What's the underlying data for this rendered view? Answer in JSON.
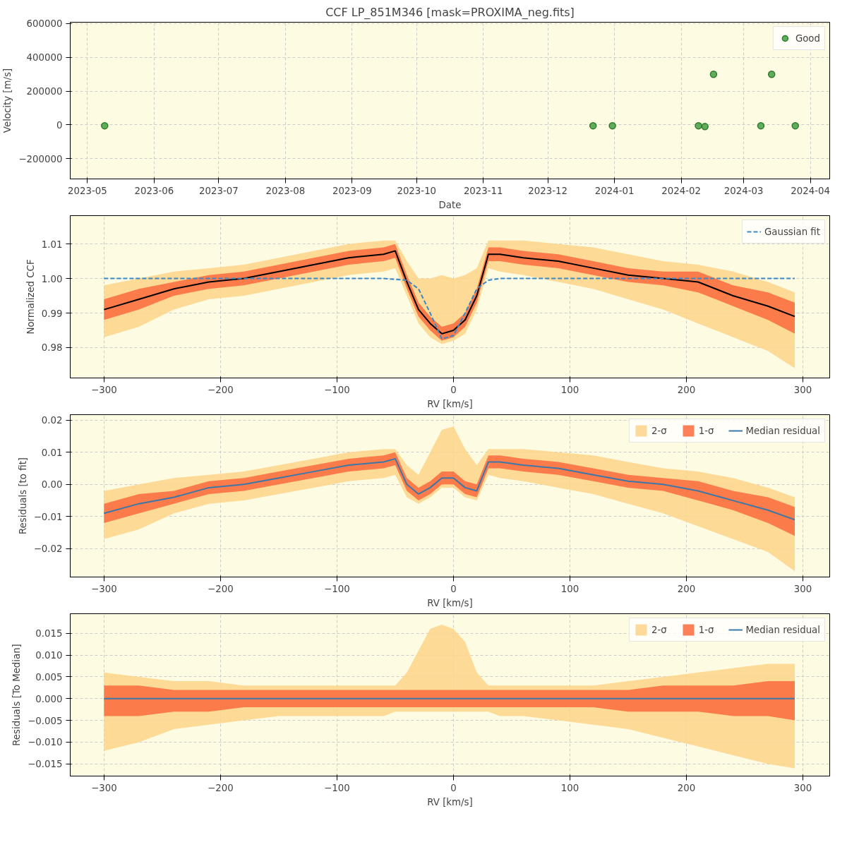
{
  "chart_data": [
    {
      "type": "scatter",
      "title": "CCF LP_851M346 [mask=PROXIMA_neg.fits]",
      "xlabel": "Date",
      "ylabel": "Velocity [m/s]",
      "legend": "top right",
      "grid": true,
      "marker": "circle",
      "xlim": [
        "2023-04-23",
        "2024-04-10"
      ],
      "ylim": [
        -320000,
        608000
      ],
      "xticks": [
        {
          "value": "2023-05-01",
          "label": "2023-05"
        },
        {
          "value": "2023-06-01",
          "label": "2023-06"
        },
        {
          "value": "2023-07-01",
          "label": "2023-07"
        },
        {
          "value": "2023-08-01",
          "label": "2023-08"
        },
        {
          "value": "2023-09-01",
          "label": "2023-09"
        },
        {
          "value": "2023-10-01",
          "label": "2023-10"
        },
        {
          "value": "2023-11-01",
          "label": "2023-11"
        },
        {
          "value": "2023-12-01",
          "label": "2023-12"
        },
        {
          "value": "2024-01-01",
          "label": "2024-01"
        },
        {
          "value": "2024-02-01",
          "label": "2024-02"
        },
        {
          "value": "2024-03-01",
          "label": "2024-03"
        },
        {
          "value": "2024-04-01",
          "label": "2024-04"
        }
      ],
      "yticks": [
        {
          "value": -200000,
          "label": "−200000"
        },
        0,
        200000,
        400000,
        600000
      ],
      "series": [
        {
          "name": "Good",
          "color": "#3a9a3a",
          "x": [
            "2023-05-09",
            "2023-12-22",
            "2023-12-31",
            "2024-02-09",
            "2024-02-12",
            "2024-02-16",
            "2024-03-09",
            "2024-03-14",
            "2024-03-25"
          ],
          "values": [
            -5000,
            -5000,
            -5000,
            -5000,
            -10000,
            300000,
            -5000,
            300000,
            -5000
          ]
        }
      ]
    },
    {
      "type": "line",
      "xlabel": "RV [km/s]",
      "ylabel": "Normalized CCF",
      "legend": "top right",
      "grid": true,
      "xlim": [
        -329,
        323
      ],
      "ylim": [
        0.9712,
        1.0182
      ],
      "xticks": [
        {
          "value": -300,
          "label": "−300"
        },
        {
          "value": -200,
          "label": "−200"
        },
        {
          "value": -100,
          "label": "−100"
        },
        0,
        100,
        200,
        300
      ],
      "yticks": [
        0.98,
        0.99,
        {
          "value": 1.0,
          "label": "1.00"
        },
        1.01
      ],
      "x": [
        -300,
        -270,
        -240,
        -210,
        -180,
        -150,
        -120,
        -90,
        -60,
        -50,
        -40,
        -30,
        -20,
        -10,
        0,
        10,
        20,
        30,
        40,
        60,
        90,
        120,
        150,
        180,
        210,
        240,
        270,
        293
      ],
      "series": [
        {
          "type": "line",
          "color": "#fed48a",
          "values": [
            null,
            null,
            null,
            null,
            null,
            null,
            null,
            null,
            null,
            null,
            null,
            null,
            null,
            null,
            null,
            null,
            null,
            null,
            null,
            null,
            null,
            null,
            null,
            null,
            null,
            null,
            null,
            null
          ],
          "lower": [
            0.983,
            0.986,
            0.991,
            0.994,
            0.995,
            0.997,
            0.999,
            1.001,
            1.002,
            1.003,
            0.995,
            0.987,
            0.983,
            0.981,
            0.982,
            0.984,
            0.991,
            1.003,
            1.002,
            1.001,
            0.999,
            0.997,
            0.994,
            0.991,
            0.987,
            0.983,
            0.979,
            0.974
          ],
          "upper": [
            0.998,
            1.0,
            1.002,
            1.003,
            1.004,
            1.006,
            1.008,
            1.01,
            1.011,
            1.011,
            1.005,
            1.0,
            1.0,
            1.001,
            1.0,
            1.001,
            1.003,
            1.011,
            1.011,
            1.011,
            1.01,
            1.009,
            1.007,
            1.005,
            1.004,
            1.002,
            0.999,
            0.996
          ]
        },
        {
          "type": "line",
          "color": "#fb6a3c",
          "values": [
            null,
            null,
            null,
            null,
            null,
            null,
            null,
            null,
            null,
            null,
            null,
            null,
            null,
            null,
            null,
            null,
            null,
            null,
            null,
            null,
            null,
            null,
            null,
            null,
            null,
            null,
            null,
            null
          ],
          "lower": [
            0.988,
            0.991,
            0.995,
            0.997,
            0.998,
            1.0,
            1.002,
            1.004,
            1.005,
            1.006,
            0.997,
            0.989,
            0.985,
            0.982,
            0.983,
            0.986,
            0.993,
            1.005,
            1.005,
            1.004,
            1.003,
            1.001,
            0.999,
            0.998,
            0.996,
            0.992,
            0.988,
            0.984
          ],
          "upper": [
            0.994,
            0.997,
            0.999,
            1.001,
            1.002,
            1.004,
            1.006,
            1.008,
            1.009,
            1.01,
            1.001,
            0.993,
            0.989,
            0.986,
            0.987,
            0.99,
            0.997,
            1.009,
            1.009,
            1.008,
            1.007,
            1.005,
            1.003,
            1.002,
            1.002,
            0.998,
            0.996,
            0.993
          ]
        },
        {
          "type": "line",
          "color": "#000000",
          "values": [
            0.991,
            0.994,
            0.997,
            0.999,
            1.0,
            1.002,
            1.004,
            1.006,
            1.007,
            1.008,
            0.999,
            0.991,
            0.987,
            0.984,
            0.985,
            0.988,
            0.995,
            1.007,
            1.007,
            1.006,
            1.005,
            1.003,
            1.001,
            1.0,
            0.999,
            0.995,
            0.992,
            0.989
          ]
        },
        {
          "type": "line",
          "name": "Gaussian fit",
          "color": "#3a88c5",
          "line_style": "dashed",
          "x": [
            -300,
            -60,
            -40,
            -30,
            -20,
            -10,
            0,
            10,
            20,
            30,
            40,
            293
          ],
          "values": [
            1.0,
            1.0,
            0.9995,
            0.997,
            0.99,
            0.9825,
            0.9835,
            0.99,
            0.997,
            0.9995,
            1.0,
            1.0
          ]
        }
      ]
    },
    {
      "type": "line",
      "xlabel": "RV [km/s]",
      "ylabel": "Residuals [to fit]",
      "legend": "top right",
      "grid": true,
      "xlim": [
        -329,
        323
      ],
      "ylim": [
        -0.0288,
        0.0217
      ],
      "xticks": [
        {
          "value": -300,
          "label": "−300"
        },
        {
          "value": -200,
          "label": "−200"
        },
        {
          "value": -100,
          "label": "−100"
        },
        0,
        100,
        200,
        300
      ],
      "yticks": [
        {
          "value": -0.02,
          "label": "−0.02"
        },
        {
          "value": -0.01,
          "label": "−0.01"
        },
        {
          "value": 0,
          "label": "0.00"
        },
        0.01,
        0.02
      ],
      "x": [
        -300,
        -270,
        -240,
        -210,
        -180,
        -150,
        -120,
        -90,
        -60,
        -50,
        -40,
        -30,
        -20,
        -10,
        0,
        10,
        20,
        30,
        40,
        60,
        90,
        120,
        150,
        180,
        210,
        240,
        270,
        293
      ],
      "series": [
        {
          "type": "line",
          "name": "2-σ",
          "color": "#fed48a",
          "values": [
            null,
            null,
            null,
            null,
            null,
            null,
            null,
            null,
            null,
            null,
            null,
            null,
            null,
            null,
            null,
            null,
            null,
            null,
            null,
            null,
            null,
            null,
            null,
            null,
            null,
            null,
            null,
            null
          ],
          "lower": [
            -0.017,
            -0.014,
            -0.009,
            -0.006,
            -0.005,
            -0.003,
            -0.001,
            0.001,
            0.002,
            0.003,
            -0.004,
            -0.006,
            -0.004,
            -0.001,
            -0.001,
            -0.004,
            -0.005,
            0.003,
            0.002,
            0.001,
            -0.001,
            -0.003,
            -0.006,
            -0.009,
            -0.013,
            -0.017,
            -0.021,
            -0.027
          ],
          "upper": [
            -0.002,
            0.0,
            0.002,
            0.003,
            0.004,
            0.006,
            0.008,
            0.01,
            0.011,
            0.011,
            0.006,
            0.003,
            0.01,
            0.017,
            0.018,
            0.011,
            0.006,
            0.011,
            0.011,
            0.011,
            0.01,
            0.009,
            0.007,
            0.005,
            0.004,
            0.002,
            -0.001,
            -0.004
          ]
        },
        {
          "type": "line",
          "name": "1-σ",
          "color": "#fb6a3c",
          "values": [
            null,
            null,
            null,
            null,
            null,
            null,
            null,
            null,
            null,
            null,
            null,
            null,
            null,
            null,
            null,
            null,
            null,
            null,
            null,
            null,
            null,
            null,
            null,
            null,
            null,
            null,
            null,
            null
          ],
          "lower": [
            -0.012,
            -0.009,
            -0.006,
            -0.003,
            -0.002,
            0.0,
            0.002,
            0.004,
            0.005,
            0.006,
            -0.002,
            -0.005,
            -0.003,
            0.0,
            0.0,
            -0.003,
            -0.004,
            0.005,
            0.005,
            0.004,
            0.003,
            0.001,
            -0.001,
            -0.002,
            -0.005,
            -0.008,
            -0.012,
            -0.016
          ],
          "upper": [
            -0.006,
            -0.003,
            -0.002,
            0.001,
            0.002,
            0.004,
            0.006,
            0.008,
            0.009,
            0.01,
            0.002,
            -0.001,
            0.001,
            0.004,
            0.004,
            0.001,
            0.0,
            0.009,
            0.009,
            0.008,
            0.007,
            0.005,
            0.003,
            0.002,
            0.001,
            -0.002,
            -0.004,
            -0.007
          ]
        },
        {
          "type": "line",
          "name": "Median residual",
          "color": "#3b78a9",
          "values": [
            -0.009,
            -0.006,
            -0.004,
            -0.001,
            0.0,
            0.002,
            0.004,
            0.006,
            0.007,
            0.008,
            0.0,
            -0.003,
            -0.001,
            0.002,
            0.002,
            -0.001,
            -0.002,
            0.007,
            0.007,
            0.006,
            0.005,
            0.003,
            0.001,
            0.0,
            -0.002,
            -0.005,
            -0.008,
            -0.011
          ]
        }
      ]
    },
    {
      "type": "line",
      "xlabel": "RV [km/s]",
      "ylabel": "Residuals [To Median]",
      "legend": "top right",
      "grid": true,
      "xlim": [
        -329,
        323
      ],
      "ylim": [
        -0.0178,
        0.0195
      ],
      "xticks": [
        {
          "value": -300,
          "label": "−300"
        },
        {
          "value": -200,
          "label": "−200"
        },
        {
          "value": -100,
          "label": "−100"
        },
        0,
        100,
        200,
        300
      ],
      "yticks": [
        {
          "value": -0.015,
          "label": "−0.015"
        },
        {
          "value": -0.01,
          "label": "−0.010"
        },
        {
          "value": -0.005,
          "label": "−0.005"
        },
        {
          "value": 0,
          "label": "0.000"
        },
        {
          "value": 0.005,
          "label": "0.005"
        },
        {
          "value": 0.01,
          "label": "0.010"
        },
        {
          "value": 0.015,
          "label": "0.015"
        }
      ],
      "x": [
        -300,
        -270,
        -240,
        -210,
        -180,
        -150,
        -120,
        -90,
        -60,
        -50,
        -40,
        -30,
        -20,
        -10,
        0,
        10,
        20,
        30,
        40,
        60,
        90,
        120,
        150,
        180,
        210,
        240,
        270,
        293
      ],
      "series": [
        {
          "type": "line",
          "name": "2-σ",
          "color": "#fed48a",
          "values": [
            null,
            null,
            null,
            null,
            null,
            null,
            null,
            null,
            null,
            null,
            null,
            null,
            null,
            null,
            null,
            null,
            null,
            null,
            null,
            null,
            null,
            null,
            null,
            null,
            null,
            null,
            null,
            null
          ],
          "lower": [
            -0.012,
            -0.01,
            -0.007,
            -0.006,
            -0.005,
            -0.004,
            -0.004,
            -0.004,
            -0.004,
            -0.003,
            -0.003,
            -0.003,
            -0.003,
            -0.003,
            -0.003,
            -0.003,
            -0.003,
            -0.003,
            -0.004,
            -0.004,
            -0.005,
            -0.006,
            -0.007,
            -0.009,
            -0.011,
            -0.013,
            -0.015,
            -0.016
          ],
          "upper": [
            0.006,
            0.005,
            0.004,
            0.004,
            0.003,
            0.003,
            0.003,
            0.003,
            0.003,
            0.003,
            0.006,
            0.011,
            0.016,
            0.017,
            0.016,
            0.013,
            0.006,
            0.003,
            0.003,
            0.003,
            0.003,
            0.003,
            0.004,
            0.005,
            0.006,
            0.007,
            0.008,
            0.008
          ]
        },
        {
          "type": "line",
          "name": "1-σ",
          "color": "#fb6a3c",
          "values": [
            null,
            null,
            null,
            null,
            null,
            null,
            null,
            null,
            null,
            null,
            null,
            null,
            null,
            null,
            null,
            null,
            null,
            null,
            null,
            null,
            null,
            null,
            null,
            null,
            null,
            null,
            null,
            null
          ],
          "lower": [
            -0.004,
            -0.004,
            -0.003,
            -0.003,
            -0.002,
            -0.002,
            -0.002,
            -0.002,
            -0.002,
            -0.002,
            -0.002,
            -0.002,
            -0.002,
            -0.002,
            -0.002,
            -0.002,
            -0.002,
            -0.002,
            -0.002,
            -0.002,
            -0.002,
            -0.002,
            -0.003,
            -0.003,
            -0.003,
            -0.004,
            -0.004,
            -0.005
          ],
          "upper": [
            0.003,
            0.003,
            0.002,
            0.002,
            0.002,
            0.002,
            0.002,
            0.002,
            0.002,
            0.002,
            0.002,
            0.002,
            0.002,
            0.002,
            0.002,
            0.002,
            0.002,
            0.002,
            0.002,
            0.002,
            0.002,
            0.002,
            0.002,
            0.003,
            0.003,
            0.003,
            0.004,
            0.004
          ]
        },
        {
          "type": "line",
          "name": "Median residual",
          "color": "#3b78a9",
          "values": [
            0,
            0,
            0,
            0,
            0,
            0,
            0,
            0,
            0,
            0,
            0,
            0,
            0,
            0,
            0,
            0,
            0,
            0,
            0,
            0,
            0,
            0,
            0,
            0,
            0,
            0,
            0,
            0
          ]
        }
      ]
    }
  ]
}
